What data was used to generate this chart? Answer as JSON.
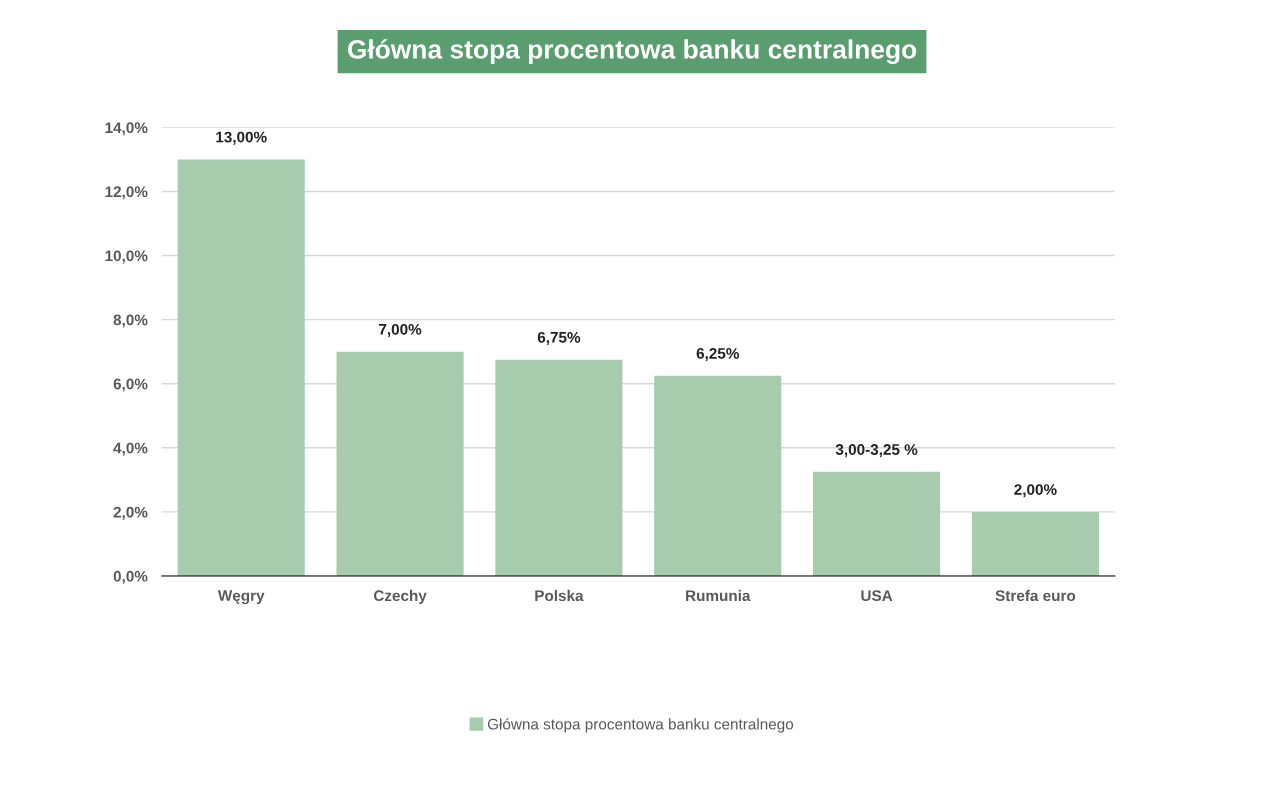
{
  "chart_data": {
    "type": "bar",
    "title": "Główna stopa procentowa banku centralnego",
    "categories": [
      "Węgry",
      "Czechy",
      "Polska",
      "Rumunia",
      "USA",
      "Strefa euro"
    ],
    "series": [
      {
        "name": "Główna stopa procentowa banku centralnego",
        "color": "#a6cbad",
        "values": [
          13.0,
          7.0,
          6.75,
          6.25,
          3.25,
          2.0
        ],
        "value_labels": [
          "13,00%",
          "7,00%",
          "6,75%",
          "6,25%",
          null,
          "2,00%"
        ]
      }
    ],
    "annotations": [
      {
        "text": "3,00-3,25 %",
        "x": "USA",
        "y": 3.25
      }
    ],
    "ylim": [
      0,
      14
    ],
    "yticks": [
      {
        "value": 0,
        "label": "0,0%"
      },
      {
        "value": 2,
        "label": "2,0%"
      },
      {
        "value": 4,
        "label": "4,0%"
      },
      {
        "value": 6,
        "label": "6,0%"
      },
      {
        "value": 8,
        "label": "8,0%"
      },
      {
        "value": 10,
        "label": "10,0%"
      },
      {
        "value": 12,
        "label": "12,0%"
      },
      {
        "value": 14,
        "label": "14,0%"
      }
    ],
    "grid": "y",
    "legend": "bottom"
  }
}
